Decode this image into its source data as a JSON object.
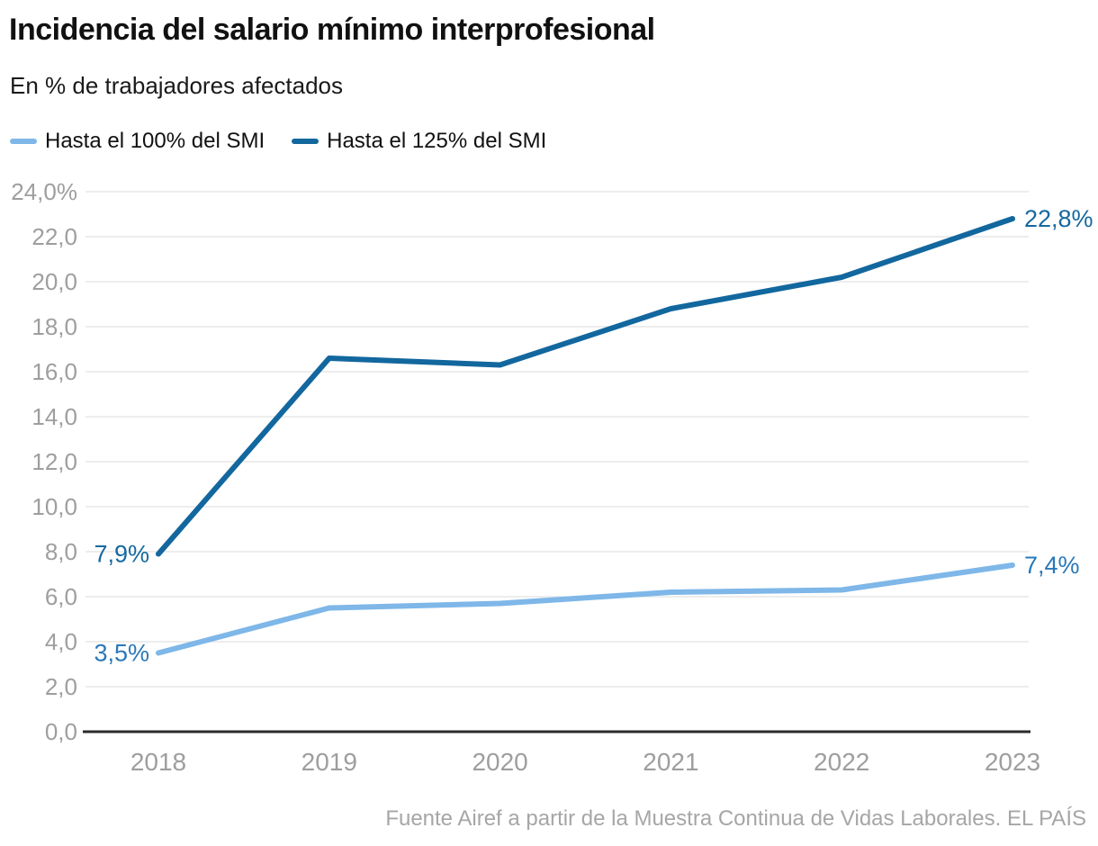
{
  "header": {
    "title": "Incidencia del salario mínimo interprofesional",
    "subtitle": "En % de trabajadores afectados"
  },
  "legend": {
    "items": [
      {
        "label": "Hasta el 100% del SMI",
        "color": "#7eb7e8"
      },
      {
        "label": "Hasta el 125% del SMI",
        "color": "#12679e"
      }
    ]
  },
  "footer": {
    "source": "Fuente Airef a partir de la Muestra Continua de Vidas Laborales. EL PAÍS"
  },
  "colors": {
    "series_light": "#7eb7e8",
    "series_dark": "#12679e",
    "label_light": "#2a78ba",
    "label_dark": "#16699f",
    "gridline": "#e7e7e7",
    "axis": "#2b2b2b",
    "tick_text": "#9e9e9e",
    "title_text": "#111111"
  },
  "chart_data": {
    "type": "line",
    "title": "Incidencia del salario mínimo interprofesional",
    "subtitle": "En % de trabajadores afectados",
    "x": [
      2018,
      2019,
      2020,
      2021,
      2022,
      2023
    ],
    "xtick_labels": [
      "2018",
      "2019",
      "2020",
      "2021",
      "2022",
      "2023"
    ],
    "ylim": [
      0,
      24
    ],
    "ytick_step": 2,
    "ytick_labels": [
      "0,0",
      "2,0",
      "4,0",
      "6,0",
      "8,0",
      "10,0",
      "12,0",
      "14,0",
      "16,0",
      "18,0",
      "20,0",
      "22,0",
      "24,0%"
    ],
    "grid": true,
    "legend_position": "top-left",
    "series": [
      {
        "name": "Hasta el 100% del SMI",
        "color": "#7eb7e8",
        "label_color": "#2a78ba",
        "values": [
          3.5,
          5.5,
          5.7,
          6.2,
          6.3,
          7.4
        ],
        "start_label": "3,5%",
        "end_label": "7,4%"
      },
      {
        "name": "Hasta el 125% del SMI",
        "color": "#12679e",
        "label_color": "#16699f",
        "values": [
          7.9,
          16.6,
          16.3,
          18.8,
          20.2,
          22.8
        ],
        "start_label": "7,9%",
        "end_label": "22,8%"
      }
    ]
  }
}
